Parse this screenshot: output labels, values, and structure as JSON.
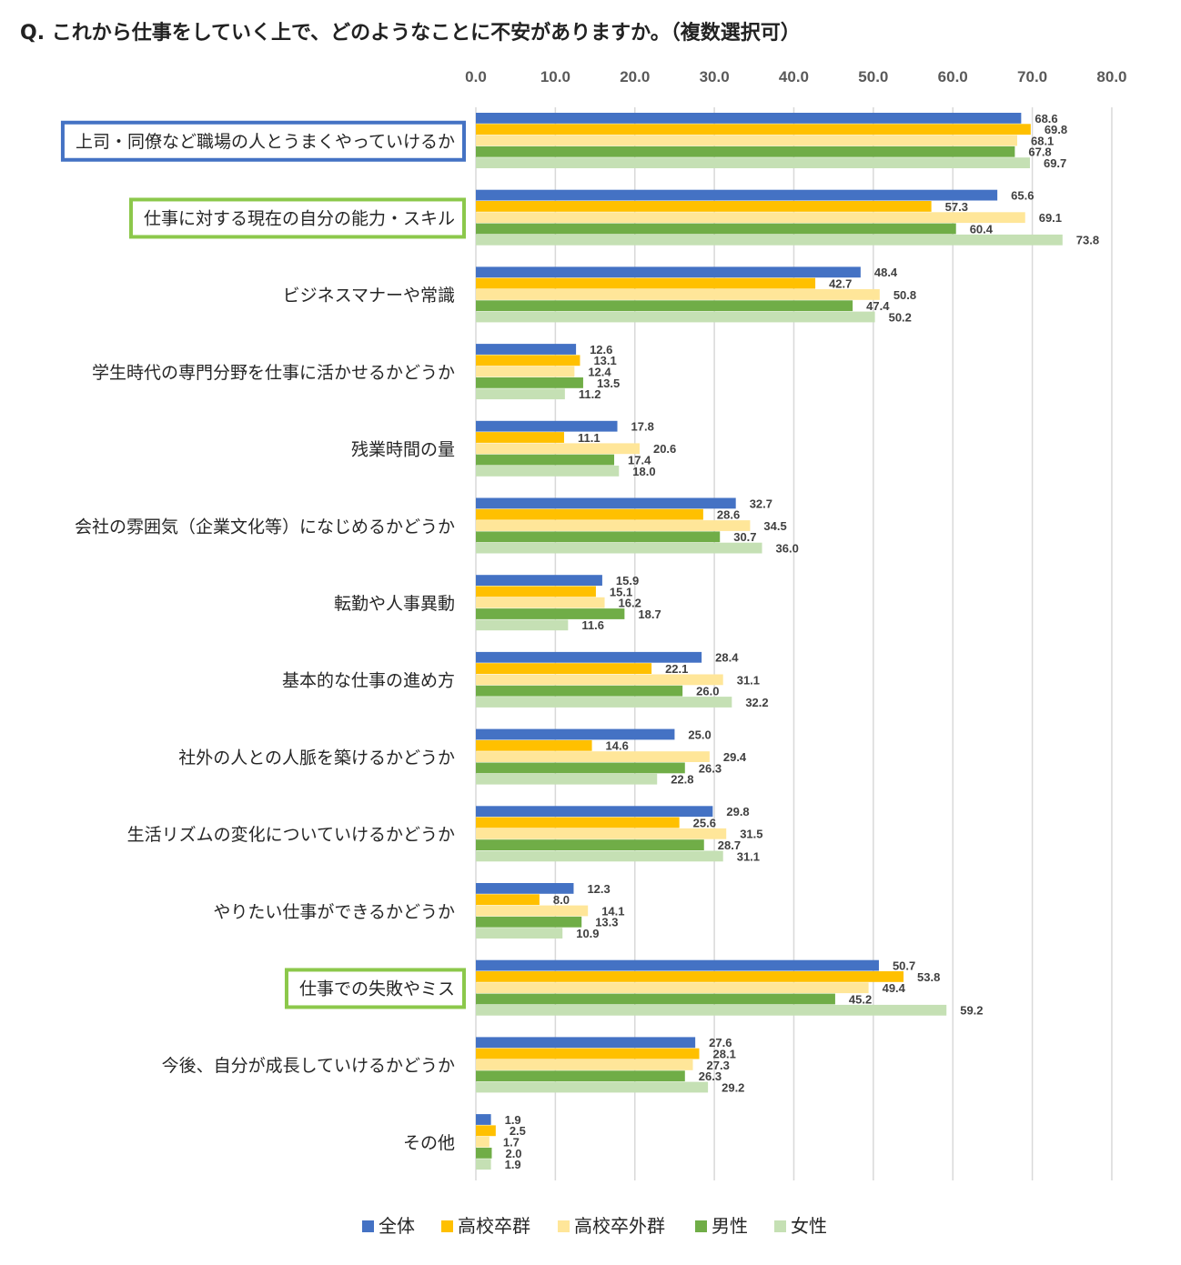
{
  "title": "Q.  これから仕事をしていく上で、どのようなことに不安がありますか。（複数選択可）",
  "colors": {
    "全体": "#4472C4",
    "高校卒群": "#FFC000",
    "高校卒外群": "#FFE699",
    "男性": "#70AD47",
    "女性": "#C5E0B4",
    "highlight_blue": "#4472C4",
    "highlight_green": "#8CC84B",
    "grid": "#D9D9D9"
  },
  "chart_data": {
    "type": "bar",
    "orientation": "horizontal",
    "title": "Q.  これから仕事をしていく上で、どのようなことに不安がありますか。（複数選択可）",
    "xlim": [
      0,
      80
    ],
    "x_ticks": [
      "0.0",
      "10.0",
      "20.0",
      "30.0",
      "40.0",
      "50.0",
      "60.0",
      "70.0",
      "80.0"
    ],
    "grid": "vertical",
    "legend_position": "bottom",
    "categories": [
      "上司・同僚など職場の人とうまくやっていけるか",
      "仕事に対する現在の自分の能力・スキル",
      "ビジネスマナーや常識",
      "学生時代の専門分野を仕事に活かせるかどうか",
      "残業時間の量",
      "会社の雰囲気（企業文化等）になじめるかどうか",
      "転勤や人事異動",
      "基本的な仕事の進め方",
      "社外の人との人脈を築けるかどうか",
      "生活リズムの変化についていけるかどうか",
      "やりたい仕事ができるかどうか",
      "仕事での失敗やミス",
      "今後、自分が成長していけるかどうか",
      "その他"
    ],
    "highlighted": [
      {
        "index": 0,
        "style": "blue"
      },
      {
        "index": 1,
        "style": "green"
      },
      {
        "index": 11,
        "style": "green"
      }
    ],
    "series": [
      {
        "name": "全体",
        "values": [
          68.6,
          65.6,
          48.4,
          12.6,
          17.8,
          32.7,
          15.9,
          28.4,
          25.0,
          29.8,
          12.3,
          50.7,
          27.6,
          1.9
        ]
      },
      {
        "name": "高校卒群",
        "values": [
          69.8,
          57.3,
          42.7,
          13.1,
          11.1,
          28.6,
          15.1,
          22.1,
          14.6,
          25.6,
          8.0,
          53.8,
          28.1,
          2.5
        ]
      },
      {
        "name": "高校卒外群",
        "values": [
          68.1,
          69.1,
          50.8,
          12.4,
          20.6,
          34.5,
          16.2,
          31.1,
          29.4,
          31.5,
          14.1,
          49.4,
          27.3,
          1.7
        ]
      },
      {
        "name": "男性",
        "values": [
          67.8,
          60.4,
          47.4,
          13.5,
          17.4,
          30.7,
          18.7,
          26.0,
          26.3,
          28.7,
          13.3,
          45.2,
          26.3,
          2.0
        ]
      },
      {
        "name": "女性",
        "values": [
          69.7,
          73.8,
          50.2,
          11.2,
          18.0,
          36.0,
          11.6,
          32.2,
          22.8,
          31.1,
          10.9,
          59.2,
          29.2,
          1.9
        ]
      }
    ]
  }
}
